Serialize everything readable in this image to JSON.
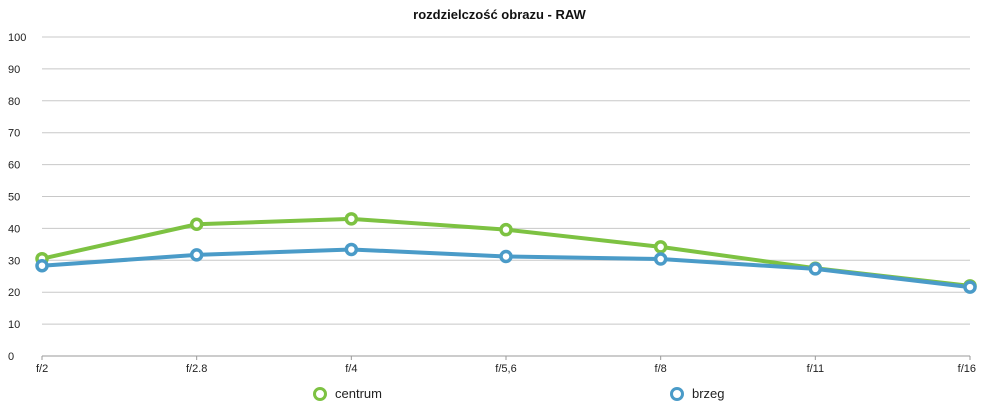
{
  "chart_data": {
    "type": "line",
    "title": "rozdzielczość obrazu - RAW",
    "categories": [
      "f/2",
      "f/2.8",
      "f/4",
      "f/5,6",
      "f/8",
      "f/11",
      "f/16"
    ],
    "series": [
      {
        "name": "centrum",
        "color": "#7dc242",
        "values": [
          30.5,
          41.3,
          43.0,
          39.6,
          34.2,
          27.5,
          22.0
        ]
      },
      {
        "name": "brzeg",
        "color": "#4a9bc8",
        "values": [
          28.3,
          31.7,
          33.4,
          31.2,
          30.4,
          27.3,
          21.6
        ]
      }
    ],
    "ylim": [
      0,
      100
    ],
    "yticks": [
      "0",
      "10",
      "20",
      "30",
      "40",
      "50",
      "60",
      "70",
      "80",
      "90",
      "100"
    ],
    "grid": true,
    "legend": "bottom-center"
  }
}
